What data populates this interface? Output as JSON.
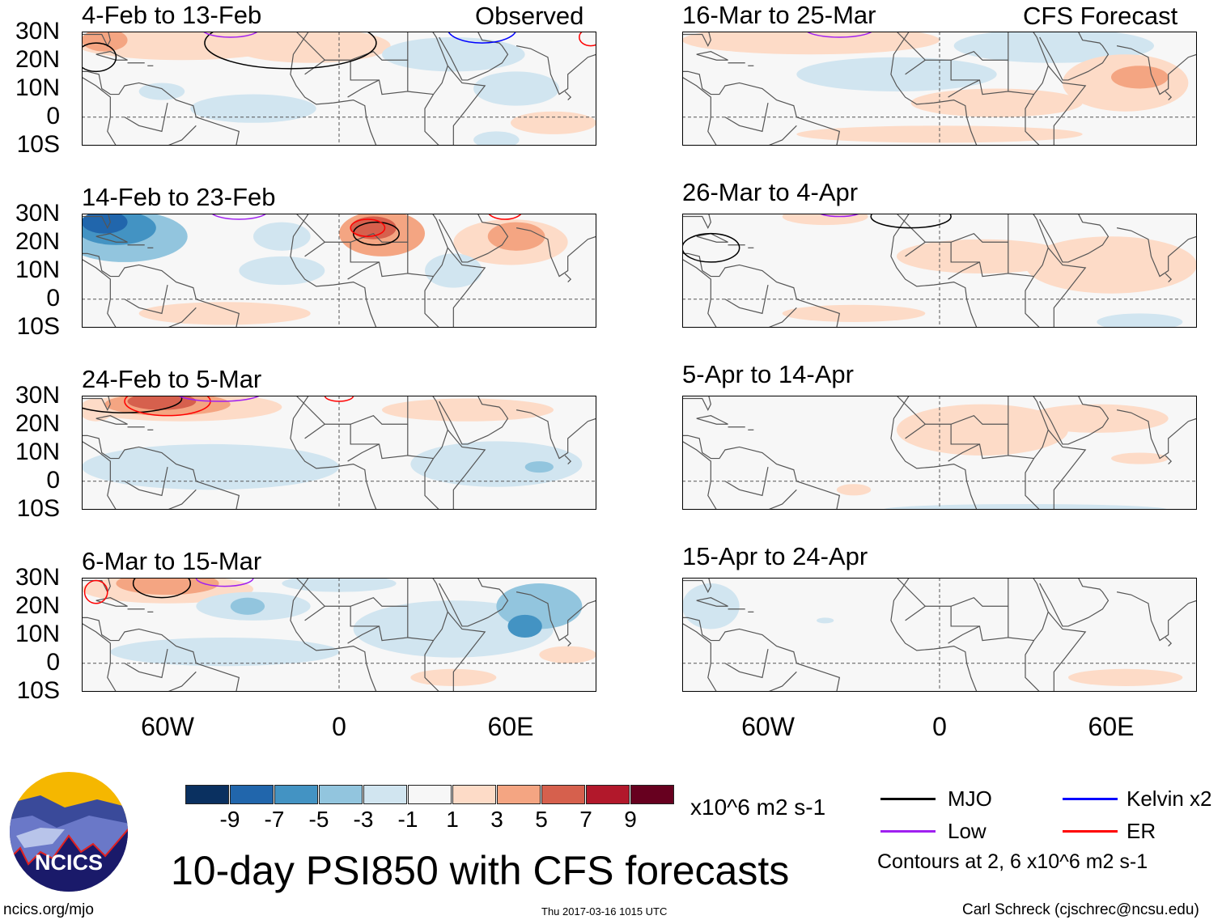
{
  "headers": {
    "observed": "Observed",
    "forecast": "CFS Forecast"
  },
  "lat_labels": [
    "30N",
    "20N",
    "10N",
    "0",
    "10S"
  ],
  "lon_labels": [
    "60W",
    "0",
    "60E"
  ],
  "colors": {
    "-10": "#0a3060",
    "-8": "#2166ac",
    "-6": "#4393c3",
    "-4": "#92c5de",
    "-2": "#d1e5f0",
    "0": "#f7f7f7",
    "2": "#fddbc7",
    "4": "#f4a582",
    "6": "#d6604d",
    "8": "#b2182b",
    "10": "#67001f",
    "mjo": "#000000",
    "kelvin": "#0000ff",
    "low": "#a020f0",
    "er": "#ff0000"
  },
  "panels": [
    {
      "title": "4-Feb to 13-Feb",
      "blobs": [
        [
          -55,
          26,
          38,
          6,
          2
        ],
        [
          -10,
          25,
          28,
          6,
          2
        ],
        [
          -82,
          27,
          8,
          4,
          4
        ],
        [
          -30,
          3,
          22,
          5,
          -2
        ],
        [
          -62,
          9,
          8,
          3,
          -2
        ],
        [
          40,
          22,
          25,
          6,
          -2
        ],
        [
          62,
          10,
          15,
          6,
          -2
        ],
        [
          75,
          -2,
          15,
          4,
          2
        ],
        [
          55,
          -8,
          8,
          3,
          -2
        ]
      ],
      "contours": [
        [
          -17,
          26,
          30,
          9,
          "mjo"
        ],
        [
          -38,
          31,
          10,
          3,
          "low"
        ],
        [
          50,
          31,
          12,
          5,
          "kelvin"
        ],
        [
          88,
          28,
          4,
          3,
          "er"
        ],
        [
          -85,
          21,
          7,
          5,
          "mjo"
        ]
      ]
    },
    {
      "title": "16-Mar to 25-Mar",
      "blobs": [
        [
          -45,
          27,
          45,
          5,
          2
        ],
        [
          -15,
          15,
          35,
          6,
          -2
        ],
        [
          40,
          25,
          35,
          6,
          -2
        ],
        [
          65,
          12,
          22,
          10,
          2
        ],
        [
          70,
          14,
          10,
          4,
          4
        ],
        [
          20,
          5,
          30,
          5,
          2
        ],
        [
          0,
          -6,
          50,
          3,
          2
        ]
      ],
      "contours": [
        [
          -35,
          31,
          12,
          3,
          "low"
        ]
      ]
    },
    {
      "title": "14-Feb to 23-Feb",
      "blobs": [
        [
          -75,
          22,
          22,
          9,
          -4
        ],
        [
          -78,
          25,
          14,
          6,
          -6
        ],
        [
          -82,
          27,
          8,
          4,
          -8
        ],
        [
          -20,
          22,
          10,
          5,
          -2
        ],
        [
          15,
          23,
          15,
          8,
          4
        ],
        [
          12,
          25,
          8,
          4,
          6
        ],
        [
          60,
          20,
          20,
          8,
          2
        ],
        [
          62,
          22,
          10,
          5,
          4
        ],
        [
          -40,
          -5,
          30,
          4,
          2
        ],
        [
          -20,
          10,
          15,
          5,
          -2
        ],
        [
          40,
          10,
          10,
          6,
          -2
        ]
      ],
      "contours": [
        [
          -35,
          31,
          10,
          3,
          "low"
        ],
        [
          13,
          23,
          8,
          4,
          "mjo"
        ],
        [
          10,
          25,
          6,
          3,
          "er"
        ],
        [
          58,
          31,
          6,
          3,
          "er"
        ]
      ]
    },
    {
      "title": "26-Mar to 4-Apr",
      "blobs": [
        [
          -40,
          29,
          15,
          3,
          2
        ],
        [
          15,
          15,
          30,
          6,
          2
        ],
        [
          60,
          12,
          30,
          10,
          2
        ],
        [
          -30,
          -5,
          25,
          3,
          2
        ],
        [
          70,
          -8,
          15,
          3,
          -2
        ]
      ],
      "contours": [
        [
          -10,
          29,
          14,
          4,
          "mjo"
        ],
        [
          -80,
          18,
          10,
          5,
          "mjo"
        ],
        [
          -35,
          31,
          8,
          2,
          "low"
        ]
      ]
    },
    {
      "title": "24-Feb to 5-Mar",
      "blobs": [
        [
          -55,
          26,
          35,
          5,
          2
        ],
        [
          -60,
          27,
          22,
          4,
          4
        ],
        [
          -62,
          28,
          12,
          3,
          6
        ],
        [
          -45,
          5,
          45,
          8,
          -2
        ],
        [
          55,
          6,
          30,
          8,
          -2
        ],
        [
          70,
          5,
          5,
          2,
          -4
        ],
        [
          -85,
          25,
          6,
          4,
          2
        ],
        [
          45,
          25,
          30,
          4,
          2
        ]
      ],
      "contours": [
        [
          -75,
          29,
          20,
          5,
          "mjo"
        ],
        [
          -60,
          28,
          15,
          5,
          "er"
        ],
        [
          0,
          30,
          5,
          2,
          "er"
        ],
        [
          -42,
          31,
          15,
          3,
          "low"
        ]
      ]
    },
    {
      "title": "5-Apr to 14-Apr",
      "blobs": [
        [
          15,
          18,
          30,
          9,
          2
        ],
        [
          55,
          22,
          25,
          5,
          2
        ],
        [
          70,
          8,
          10,
          2,
          2
        ],
        [
          -30,
          -3,
          6,
          2,
          2
        ],
        [
          30,
          -10,
          50,
          2,
          -2
        ]
      ],
      "contours": []
    },
    {
      "title": "6-Mar to 15-Mar",
      "blobs": [
        [
          -60,
          26,
          30,
          5,
          2
        ],
        [
          -60,
          28,
          18,
          4,
          4
        ],
        [
          -30,
          20,
          20,
          5,
          -2
        ],
        [
          -32,
          20,
          6,
          3,
          -4
        ],
        [
          0,
          28,
          20,
          3,
          -2
        ],
        [
          40,
          12,
          35,
          10,
          -2
        ],
        [
          70,
          20,
          15,
          8,
          -4
        ],
        [
          65,
          13,
          6,
          4,
          -6
        ],
        [
          -40,
          4,
          40,
          5,
          -2
        ],
        [
          80,
          3,
          10,
          3,
          2
        ],
        [
          40,
          -5,
          15,
          3,
          2
        ]
      ],
      "contours": [
        [
          -62,
          28,
          10,
          5,
          "mjo"
        ],
        [
          -40,
          30,
          10,
          3,
          "low"
        ],
        [
          -85,
          25,
          4,
          4,
          "er"
        ]
      ]
    },
    {
      "title": "15-Apr to 24-Apr",
      "blobs": [
        [
          -80,
          20,
          10,
          8,
          -2
        ],
        [
          65,
          -5,
          20,
          3,
          2
        ],
        [
          -40,
          15,
          3,
          1,
          -2
        ]
      ],
      "contours": []
    }
  ],
  "colorbar": {
    "labels": [
      "-9",
      "-7",
      "-5",
      "-3",
      "-1",
      "1",
      "3",
      "5",
      "7",
      "9"
    ],
    "units": "x10^6 m2 s-1"
  },
  "legend": {
    "mjo": "MJO",
    "low": "Low",
    "kelvin": "Kelvin x2",
    "er": "ER",
    "note": "Contours at 2, 6 x10^6 m2 s-1"
  },
  "logo": {
    "text": "NCICS"
  },
  "title": "10-day PSI850 with CFS forecasts",
  "footer": {
    "url": "ncics.org/mjo",
    "timestamp": "Thu 2017-03-16 1015 UTC",
    "author": "Carl Schreck (cjschrec@ncsu.edu)"
  }
}
